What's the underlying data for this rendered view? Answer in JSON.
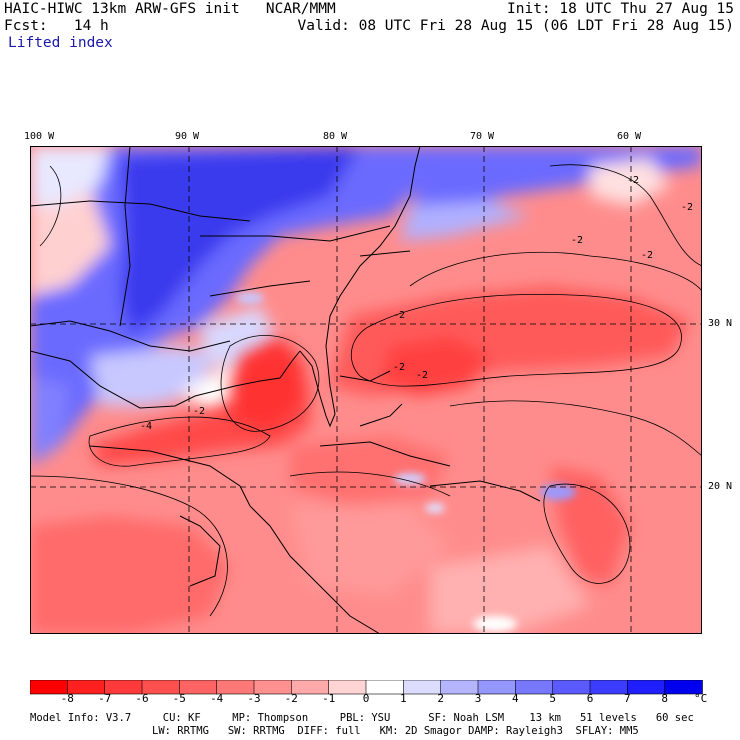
{
  "header": {
    "title": "HAIC-HIWC 13km ARW-GFS init   NCAR/MMM",
    "init": "Init: 18 UTC Thu 27 Aug 15",
    "fcst": "Fcst:   14 h",
    "valid": "Valid: 08 UTC Fri 28 Aug 15 (06 LDT Fri 28 Aug 15)",
    "field": "Lifted index"
  },
  "axes": {
    "lon_labels": [
      "100 W",
      "90 W",
      "80 W",
      "70 W",
      "60 W"
    ],
    "lat_labels": [
      "30 N",
      "20 N"
    ]
  },
  "colorbar": {
    "labels": [
      "-8",
      "-7",
      "-6",
      "-5",
      "-4",
      "-3",
      "-2",
      "-1",
      "0",
      "1",
      "2",
      "3",
      "4",
      "5",
      "6",
      "7",
      "8"
    ],
    "unit": "°C",
    "colors": [
      "#ff0000",
      "#ff2020",
      "#ff3a3a",
      "#ff5050",
      "#ff6464",
      "#ff7878",
      "#ff9090",
      "#ffaaaa",
      "#ffd4d4",
      "#ffffff",
      "#dcdcff",
      "#b4b4ff",
      "#9696ff",
      "#7878ff",
      "#5a5aff",
      "#3c3cff",
      "#1e1eff",
      "#0000ee"
    ]
  },
  "footer": {
    "line1": "Model Info: V3.7     CU: KF     MP: Thompson     PBL: YSU      SF: Noah LSM    13 km   51 levels   60 sec",
    "line2": "LW: RRTMG   SW: RRTMG  DIFF: full   KM: 2D Smagor DAMP: Rayleigh3  SFLAY: MM5"
  },
  "contour_labels": [
    "-2",
    "-2",
    "-2",
    "-2",
    "-2",
    "-2",
    "-4",
    "-2",
    "-2"
  ]
}
